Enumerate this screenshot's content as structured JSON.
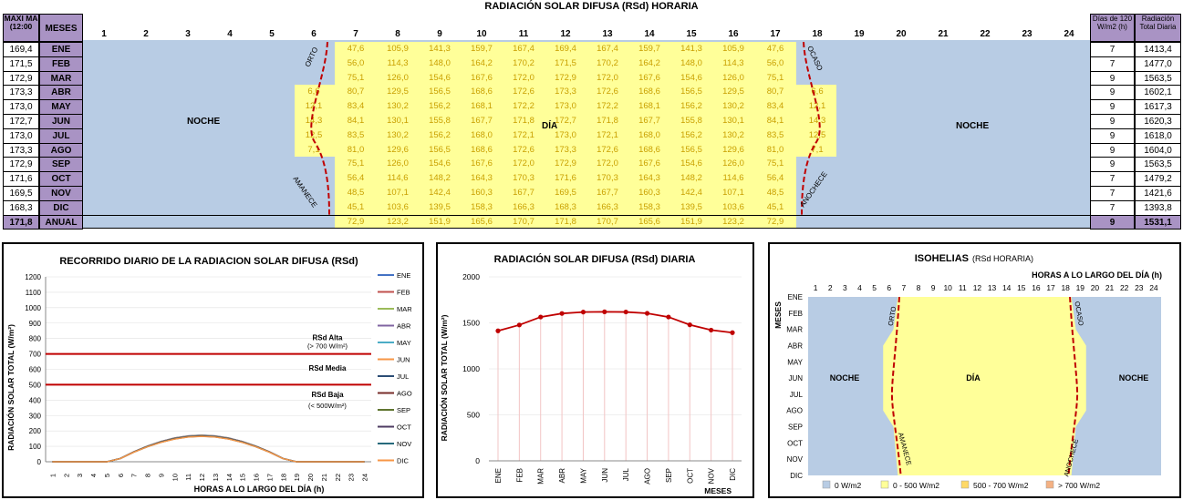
{
  "main_title": "RADIACIÓN SOLAR DIFUSA (RSd) HORARIA",
  "table": {
    "left_header_1": "MAXI MA (12:00",
    "left_header_2": "MESES",
    "right_header_1": "Días de 120 W/m2 (h)",
    "right_header_2": "Radiación Total Diaria",
    "hours": [
      "1",
      "2",
      "3",
      "4",
      "5",
      "6",
      "7",
      "8",
      "9",
      "10",
      "11",
      "12",
      "13",
      "14",
      "15",
      "16",
      "17",
      "18",
      "19",
      "20",
      "21",
      "22",
      "23",
      "24"
    ],
    "months": [
      {
        "max": "169,4",
        "name": "ENE",
        "vals": [
          "47,6",
          "105,9",
          "141,3",
          "159,7",
          "167,4",
          "169,4",
          "167,4",
          "159,7",
          "141,3",
          "105,9",
          "47,6"
        ],
        "edge": null,
        "days": "7",
        "total": "1413,4"
      },
      {
        "max": "171,5",
        "name": "FEB",
        "vals": [
          "56,0",
          "114,3",
          "148,0",
          "164,2",
          "170,2",
          "171,5",
          "170,2",
          "164,2",
          "148,0",
          "114,3",
          "56,0"
        ],
        "edge": null,
        "days": "7",
        "total": "1477,0"
      },
      {
        "max": "172,9",
        "name": "MAR",
        "vals": [
          "75,1",
          "126,0",
          "154,6",
          "167,6",
          "172,0",
          "172,9",
          "172,0",
          "167,6",
          "154,6",
          "126,0",
          "75,1"
        ],
        "edge": null,
        "days": "9",
        "total": "1563,5"
      },
      {
        "max": "173,3",
        "name": "ABR",
        "vals": [
          "80,7",
          "129,5",
          "156,5",
          "168,6",
          "172,6",
          "173,3",
          "172,6",
          "168,6",
          "156,5",
          "129,5",
          "80,7"
        ],
        "edge": "6,6",
        "days": "9",
        "total": "1602,1"
      },
      {
        "max": "173,0",
        "name": "MAY",
        "vals": [
          "83,4",
          "130,2",
          "156,2",
          "168,1",
          "172,2",
          "173,0",
          "172,2",
          "168,1",
          "156,2",
          "130,2",
          "83,4"
        ],
        "edge": "12,1",
        "days": "9",
        "total": "1617,3"
      },
      {
        "max": "172,7",
        "name": "JUN",
        "vals": [
          "84,1",
          "130,1",
          "155,8",
          "167,7",
          "171,8",
          "172,7",
          "171,8",
          "167,7",
          "155,8",
          "130,1",
          "84,1"
        ],
        "edge": "14,3",
        "days": "9",
        "total": "1620,3"
      },
      {
        "max": "173,0",
        "name": "JUL",
        "vals": [
          "83,5",
          "130,2",
          "156,2",
          "168,0",
          "172,1",
          "173,0",
          "172,1",
          "168,0",
          "156,2",
          "130,2",
          "83,5"
        ],
        "edge": "12,5",
        "days": "9",
        "total": "1618,0"
      },
      {
        "max": "173,3",
        "name": "AGO",
        "vals": [
          "81,0",
          "129,6",
          "156,5",
          "168,6",
          "172,6",
          "173,3",
          "172,6",
          "168,6",
          "156,5",
          "129,6",
          "81,0"
        ],
        "edge": "7,1",
        "days": "9",
        "total": "1604,0"
      },
      {
        "max": "172,9",
        "name": "SEP",
        "vals": [
          "75,1",
          "126,0",
          "154,6",
          "167,6",
          "172,0",
          "172,9",
          "172,0",
          "167,6",
          "154,6",
          "126,0",
          "75,1"
        ],
        "edge": null,
        "days": "9",
        "total": "1563,5"
      },
      {
        "max": "171,6",
        "name": "OCT",
        "vals": [
          "56,4",
          "114,6",
          "148,2",
          "164,3",
          "170,3",
          "171,6",
          "170,3",
          "164,3",
          "148,2",
          "114,6",
          "56,4"
        ],
        "edge": null,
        "days": "7",
        "total": "1479,2"
      },
      {
        "max": "169,5",
        "name": "NOV",
        "vals": [
          "48,5",
          "107,1",
          "142,4",
          "160,3",
          "167,7",
          "169,5",
          "167,7",
          "160,3",
          "142,4",
          "107,1",
          "48,5"
        ],
        "edge": null,
        "days": "7",
        "total": "1421,6"
      },
      {
        "max": "168,3",
        "name": "DIC",
        "vals": [
          "45,1",
          "103,6",
          "139,5",
          "158,3",
          "166,3",
          "168,3",
          "166,3",
          "158,3",
          "139,5",
          "103,6",
          "45,1"
        ],
        "edge": null,
        "days": "7",
        "total": "1393,8"
      }
    ],
    "annual": {
      "max": "171,8",
      "name": "ANUAL",
      "vals": [
        "72,9",
        "123,2",
        "151,9",
        "165,6",
        "170,7",
        "171,8",
        "170,7",
        "165,6",
        "151,9",
        "123,2",
        "72,9"
      ],
      "days": "9",
      "total": "1531,1"
    },
    "label_noche": "NOCHE",
    "label_dia": "DÍA",
    "label_orto": "ORTO",
    "label_ocaso": "OCASO",
    "label_amanece": "AMANECE",
    "label_anochece": "ANOCHECE",
    "colors": {
      "night": "#b8cce4",
      "day": "#ffff99",
      "header": "#a993c4",
      "value": "#c9a000",
      "curve": "#c00000"
    }
  },
  "chart_data": [
    {
      "type": "line",
      "title": "RECORRIDO DIARIO DE LA RADIACION SOLAR DIFUSA (RSd)",
      "xlabel": "HORAS A LO LARGO DEL DÍA (h)",
      "ylabel": "RADIACIÓN SOLAR TOTAL (W/m²)",
      "ylim": [
        0,
        1200
      ],
      "yticks": [
        "0",
        "100",
        "200",
        "300",
        "400",
        "500",
        "600",
        "700",
        "800",
        "900",
        "1000",
        "1100",
        "1200"
      ],
      "x": [
        "1",
        "2",
        "3",
        "4",
        "5",
        "6",
        "7",
        "8",
        "9",
        "10",
        "11",
        "12",
        "13",
        "14",
        "15",
        "16",
        "17",
        "18",
        "19",
        "20",
        "21",
        "22",
        "23",
        "24"
      ],
      "legend": [
        "ENE",
        "FEB",
        "MAR",
        "ABR",
        "MAY",
        "JUN",
        "JUL",
        "AGO",
        "SEP",
        "OCT",
        "NOV",
        "DIC"
      ],
      "legend_colors": [
        "#4472c4",
        "#c0504d",
        "#9bbb59",
        "#8064a2",
        "#4bacc6",
        "#f79646",
        "#2c4d75",
        "#772c2a",
        "#5f7530",
        "#4d3b62",
        "#276a7c",
        "#f79646"
      ],
      "thresholds": [
        {
          "value": 700,
          "label": "RSd Alta",
          "sub": "(> 700 W/m²)"
        },
        {
          "value": 500,
          "label": "RSd Media"
        }
      ],
      "annotation_low": {
        "label": "RSd Baja",
        "sub": "(< 500W/m²)"
      },
      "profile_max": 173
    },
    {
      "type": "line",
      "title": "RADIACIÓN SOLAR DIFUSA (RSd) DIARIA",
      "xlabel": "MESES",
      "ylabel": "RADIACIÓN SOLAR TOTAL (W/m²)",
      "ylim": [
        0,
        2000
      ],
      "yticks": [
        "0",
        "500",
        "1000",
        "1500",
        "2000"
      ],
      "categories": [
        "ENE",
        "FEB",
        "MAR",
        "ABR",
        "MAY",
        "JUN",
        "JUL",
        "AGO",
        "SEP",
        "OCT",
        "NOV",
        "DIC"
      ],
      "values": [
        1413.4,
        1477.0,
        1563.5,
        1602.1,
        1617.3,
        1620.3,
        1618.0,
        1604.0,
        1563.5,
        1479.2,
        1421.6,
        1393.8
      ]
    },
    {
      "type": "heatmap",
      "title": "ISOHELIAS",
      "subtitle": "(RSd HORARIA)",
      "xlabel": "HORAS A LO LARGO DEL DÍA (h)",
      "ylabel": "MESES",
      "x": [
        "1",
        "2",
        "3",
        "4",
        "5",
        "6",
        "7",
        "8",
        "9",
        "10",
        "11",
        "12",
        "13",
        "14",
        "15",
        "16",
        "17",
        "18",
        "19",
        "20",
        "21",
        "22",
        "23",
        "24"
      ],
      "y": [
        "ENE",
        "FEB",
        "MAR",
        "ABR",
        "MAY",
        "JUN",
        "JUL",
        "AGO",
        "SEP",
        "OCT",
        "NOV",
        "DIC"
      ],
      "legend": [
        "0 W/m2",
        "0 - 500 W/m2",
        "500 - 700 W/m2",
        "> 700 W/m2"
      ],
      "legend_colors": [
        "#b8cce4",
        "#ffff99",
        "#ffd966",
        "#f4b183"
      ],
      "label_noche": "NOCHE",
      "label_dia": "DÍA",
      "label_orto": "ORTO",
      "label_ocaso": "OCASO",
      "label_amanece": "AMANECE",
      "label_anochece": "ANOCHECE"
    }
  ]
}
